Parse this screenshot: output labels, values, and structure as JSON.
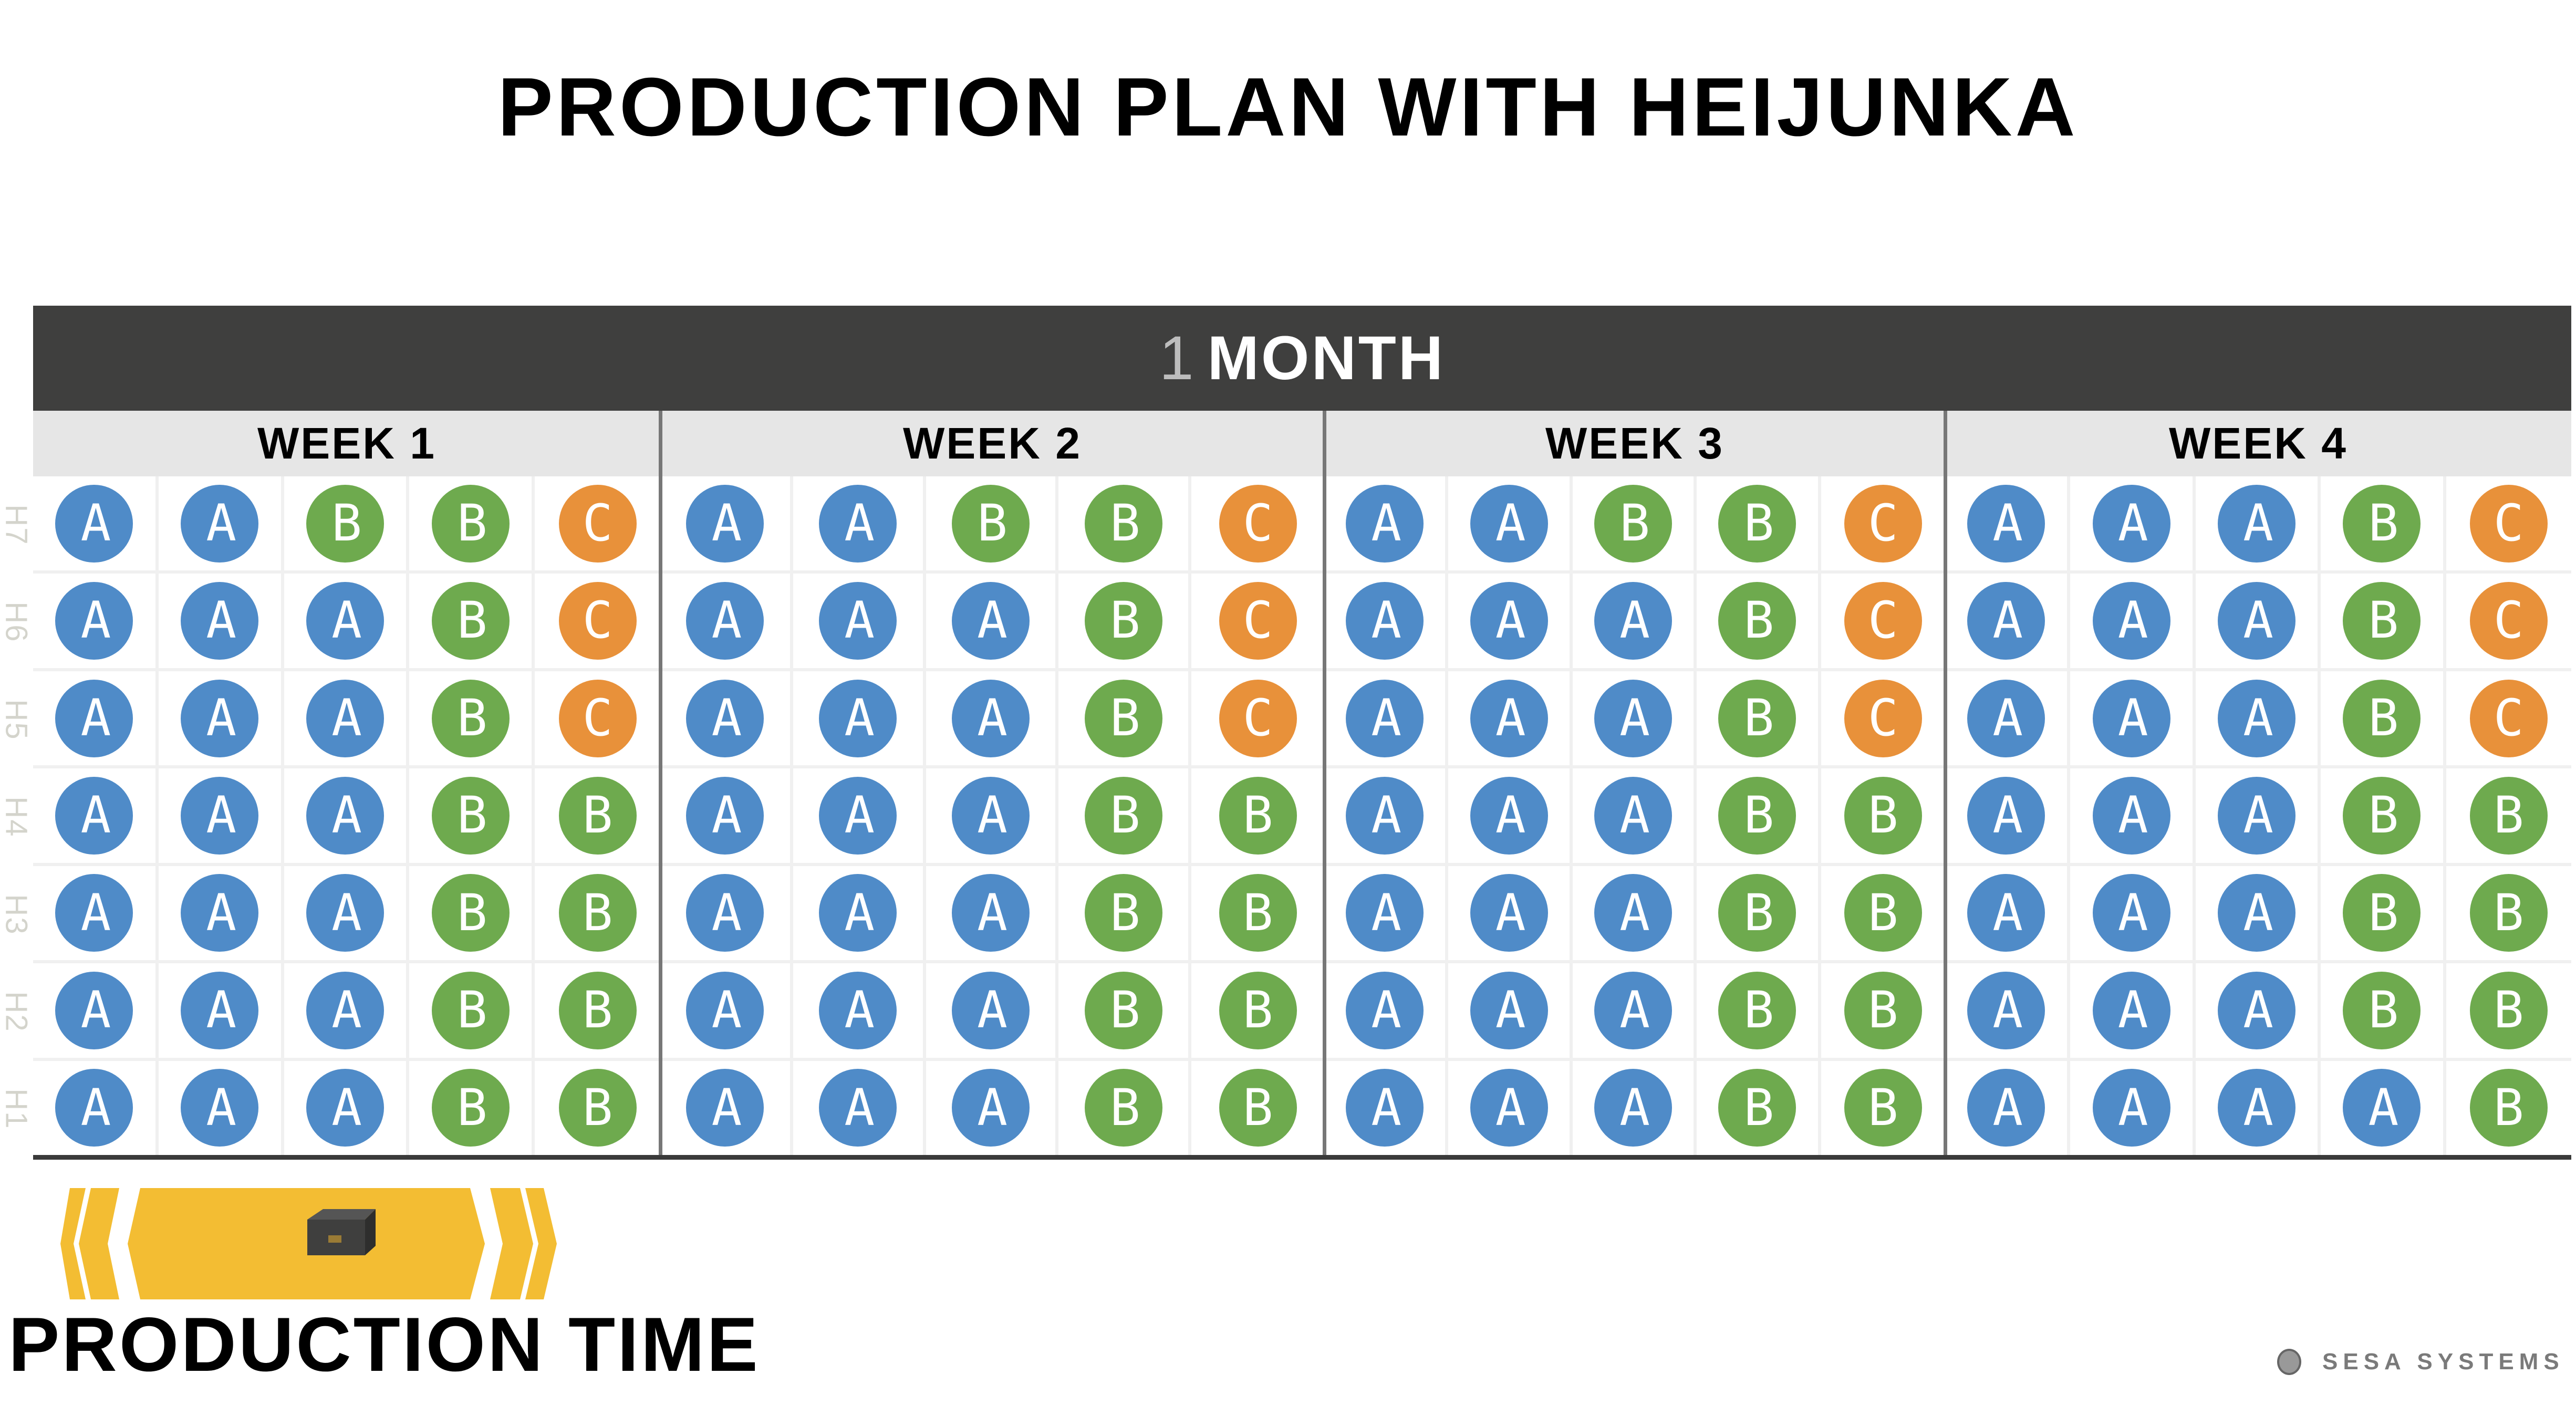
{
  "title": "PRODUCTION PLAN WITH HEIJUNKA",
  "month": {
    "number": "1",
    "label": "MONTH"
  },
  "row_labels": [
    "H7",
    "H6",
    "H5",
    "H4",
    "H3",
    "H2",
    "H1"
  ],
  "product_colors": {
    "A": "#4f8bc8",
    "B": "#6eaa4e",
    "C": "#e8913a"
  },
  "weeks": [
    {
      "label": "WEEK 1",
      "rows": [
        "AABBC",
        "AAABC",
        "AAABC",
        "AAABB",
        "AAABB",
        "AAABB",
        "AAABB"
      ]
    },
    {
      "label": "WEEK 2",
      "rows": [
        "AABBC",
        "AAABC",
        "AAABC",
        "AAABB",
        "AAABB",
        "AAABB",
        "AAABB"
      ]
    },
    {
      "label": "WEEK 3",
      "rows": [
        "AABBC",
        "AAABC",
        "AAABC",
        "AAABB",
        "AAABB",
        "AAABB",
        "AAABB"
      ]
    },
    {
      "label": "WEEK 4",
      "rows": [
        "AAABC",
        "AAABC",
        "AAABC",
        "AAABB",
        "AAABB",
        "AAABB",
        "AAAAB"
      ]
    }
  ],
  "footer": {
    "label": "PRODUCTION TIME",
    "icon": "box-icon",
    "banner_color": "#f3bd33"
  },
  "logo_text": "SESA SYSTEMS"
}
